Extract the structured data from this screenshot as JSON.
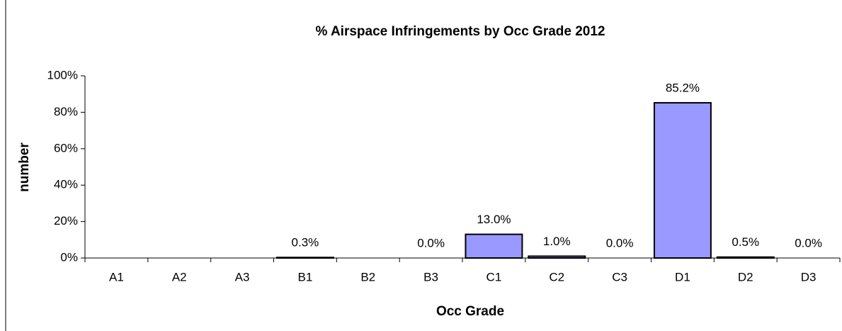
{
  "chart_data": {
    "type": "bar",
    "title": "% Airspace Infringements by Occ Grade 2012",
    "xlabel": "Occ Grade",
    "ylabel": "number",
    "categories": [
      "A1",
      "A2",
      "A3",
      "B1",
      "B2",
      "B3",
      "C1",
      "C2",
      "C3",
      "D1",
      "D2",
      "D3"
    ],
    "values": [
      null,
      null,
      null,
      0.3,
      null,
      0.0,
      13.0,
      1.0,
      0.0,
      85.2,
      0.5,
      0.0
    ],
    "value_labels": [
      null,
      null,
      null,
      "0.3%",
      null,
      "0.0%",
      "13.0%",
      "1.0%",
      "0.0%",
      "85.2%",
      "0.5%",
      "0.0%"
    ],
    "color": "#9999ff",
    "ylim": [
      0,
      100
    ],
    "yticks": [
      {
        "value": 0,
        "label": "0%"
      },
      {
        "value": 20,
        "label": "20%"
      },
      {
        "value": 40,
        "label": "40%"
      },
      {
        "value": 60,
        "label": "60%"
      },
      {
        "value": 80,
        "label": "80%"
      },
      {
        "value": 100,
        "label": "100%"
      }
    ],
    "grid": false
  }
}
